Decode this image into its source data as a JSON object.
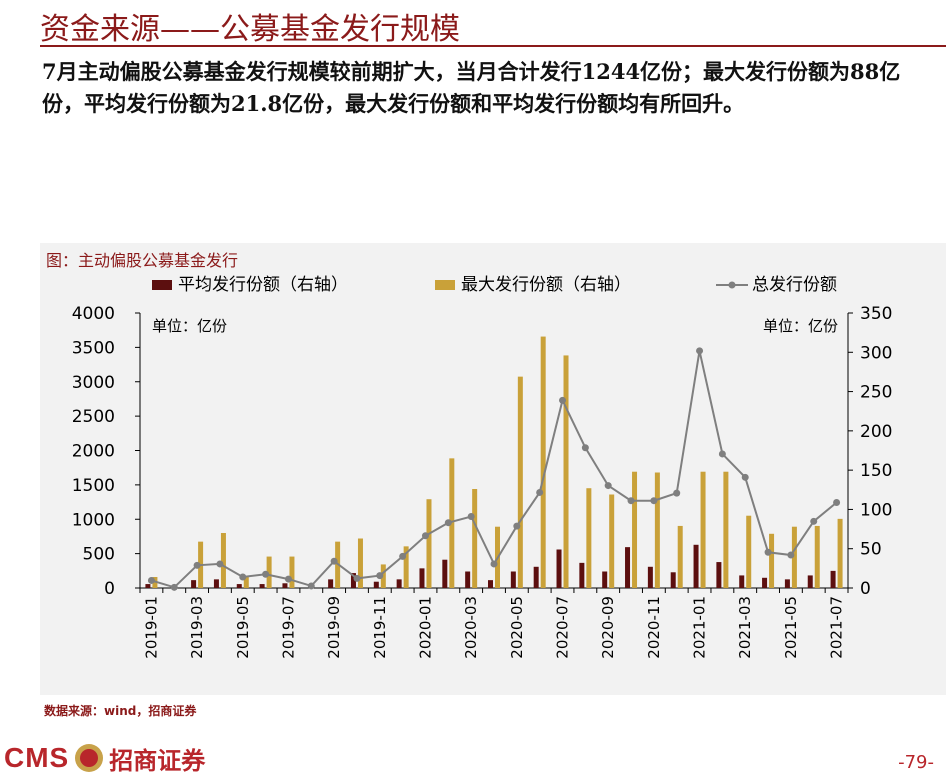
{
  "header": {
    "title": "资金来源——公募基金发行规模",
    "description": "7月主动偏股公募基金发行规模较前期扩大，当月合计发行1244亿份；最大发行份额为88亿份，平均发行份额为21.8亿份，最大发行份额和平均发行份额均有所回升。"
  },
  "chart_title": "图：主动偏股公募基金发行",
  "source": "数据来源：wind，招商证券",
  "footer": {
    "logo_cms": "CMS",
    "logo_name": "招商证券",
    "page": "-79-"
  },
  "colors": {
    "accent": "#8b1a1a",
    "avg_bar": "#5c0f0f",
    "max_bar": "#c9a139",
    "total_line": "#7f7f7f"
  },
  "chart_data": {
    "type": "bar",
    "unit_left": "单位：亿份",
    "unit_right": "单位：亿份",
    "legend_position": "top",
    "grid": false,
    "x": [
      "2019-01",
      "2019-02",
      "2019-03",
      "2019-04",
      "2019-05",
      "2019-06",
      "2019-07",
      "2019-08",
      "2019-09",
      "2019-10",
      "2019-11",
      "2019-12",
      "2020-01",
      "2020-02",
      "2020-03",
      "2020-04",
      "2020-05",
      "2020-06",
      "2020-07",
      "2020-08",
      "2020-09",
      "2020-10",
      "2020-11",
      "2020-12",
      "2021-01",
      "2021-02",
      "2021-03",
      "2021-04",
      "2021-05",
      "2021-06",
      "2021-07"
    ],
    "x_ticks": [
      "2019-01",
      "2019-03",
      "2019-05",
      "2019-07",
      "2019-09",
      "2019-11",
      "2020-01",
      "2020-03",
      "2020-05",
      "2020-07",
      "2020-09",
      "2020-11",
      "2021-01",
      "2021-03",
      "2021-05",
      "2021-07"
    ],
    "ylim_left": [
      0,
      4000
    ],
    "yticks_left": [
      0,
      500,
      1000,
      1500,
      2000,
      2500,
      3000,
      3500,
      4000
    ],
    "ylim_right": [
      0,
      350
    ],
    "yticks_right": [
      0,
      50,
      100,
      150,
      200,
      250,
      300,
      350
    ],
    "series": [
      {
        "name": "平均发行份额（右轴）",
        "kind": "bar",
        "axis": "right",
        "values": [
          5,
          0,
          10,
          11,
          5,
          5,
          6,
          0,
          11,
          19,
          8,
          11,
          25,
          36,
          21,
          10,
          21,
          27,
          49,
          32,
          21,
          52,
          27,
          20,
          55,
          33,
          16,
          13,
          11,
          16,
          21.8
        ]
      },
      {
        "name": "最大发行份额（右轴）",
        "kind": "bar",
        "axis": "right",
        "values": [
          14,
          0,
          59,
          70,
          14,
          40,
          40,
          0,
          59,
          63,
          30,
          53,
          113,
          165,
          126,
          78,
          269,
          320,
          296,
          127,
          119,
          148,
          147,
          79,
          148,
          148,
          92,
          69,
          78,
          79,
          88
        ]
      },
      {
        "name": "总发行份额",
        "kind": "line",
        "axis": "left",
        "values": [
          110,
          10,
          330,
          350,
          160,
          200,
          130,
          30,
          390,
          140,
          180,
          460,
          760,
          950,
          1040,
          350,
          900,
          1390,
          2730,
          2040,
          1490,
          1270,
          1270,
          1380,
          3450,
          1950,
          1610,
          520,
          480,
          970,
          1244
        ]
      }
    ]
  }
}
